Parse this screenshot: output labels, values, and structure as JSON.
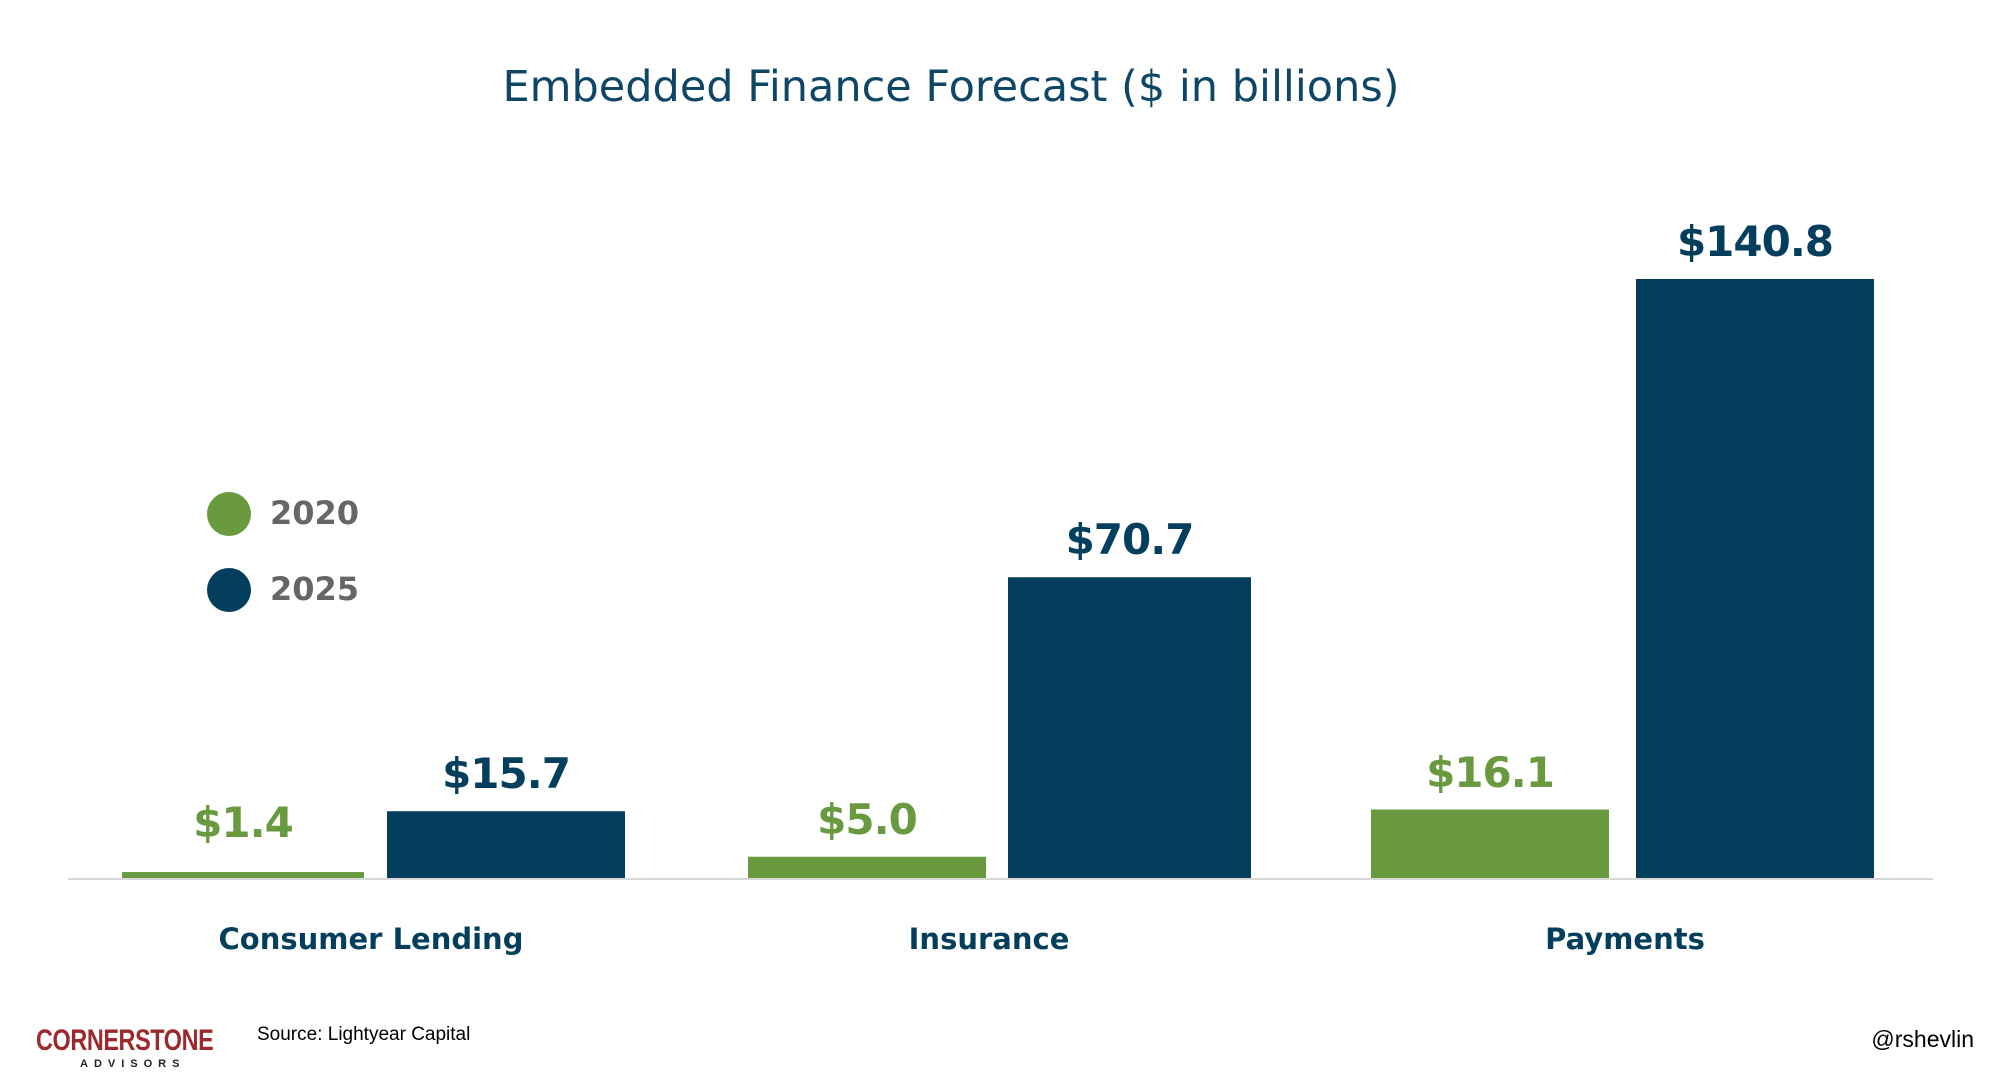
{
  "chart_data": {
    "type": "bar",
    "title": "Embedded Finance Forecast ($ in billions)",
    "categories": [
      "Consumer Lending",
      "Insurance",
      "Payments"
    ],
    "series": [
      {
        "name": "2020",
        "color": "#6a9a40",
        "values": [
          1.4,
          5.0,
          16.1
        ],
        "labels": [
          "$1.4",
          "$5.0",
          "$16.1"
        ]
      },
      {
        "name": "2025",
        "color": "#033e5c",
        "values": [
          15.7,
          70.7,
          140.8
        ],
        "labels": [
          "$15.7",
          "$70.7",
          "$140.8"
        ]
      }
    ],
    "xlabel": "",
    "ylabel": "",
    "ylim": [
      0,
      140.8
    ],
    "grid": false,
    "legend": "left"
  },
  "footer": {
    "logo_line1": "CORNERSTONE",
    "logo_line2": "ADVISORS",
    "source": "Source: Lightyear Capital",
    "handle": "@rshevlin"
  }
}
